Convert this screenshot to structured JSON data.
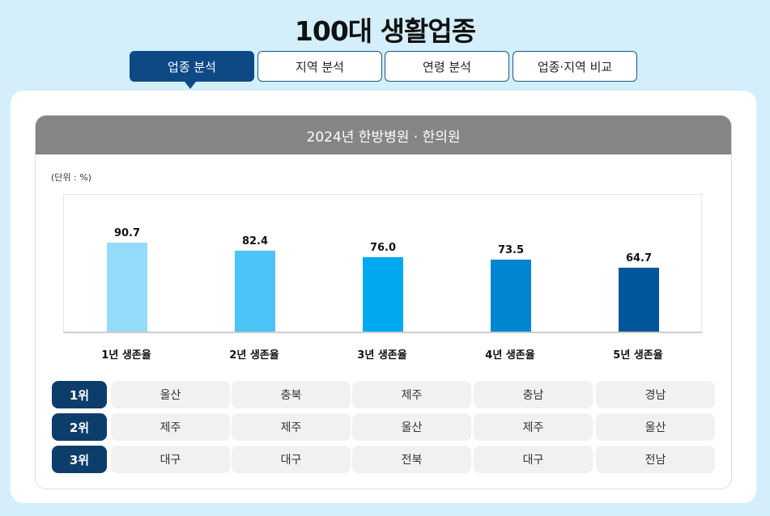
{
  "title": "100대 생활업종",
  "tabs": [
    {
      "label": "업종 분석",
      "active": true
    },
    {
      "label": "지역 분석"
    },
    {
      "label": "연령 분석"
    },
    {
      "label": "업종·지역 비교"
    }
  ],
  "card_title": "2024년 한방병원 · 한의원",
  "unit": "(단위 : %)",
  "chart_data": {
    "type": "bar",
    "categories": [
      "1년 생존율",
      "2년 생존율",
      "3년 생존율",
      "4년 생존율",
      "5년 생존율"
    ],
    "values": [
      90.7,
      82.4,
      76.0,
      73.5,
      64.7
    ],
    "value_labels": [
      "90.7",
      "82.4",
      "76.0",
      "73.5",
      "64.7"
    ],
    "colors": [
      "#93dbf9",
      "#4cc3f6",
      "#00a8f0",
      "#0085d1",
      "#00559b"
    ],
    "ylim": [
      0,
      140
    ],
    "grid": false
  },
  "rankings": [
    {
      "rank": "1위",
      "regions": [
        "울산",
        "충북",
        "제주",
        "충남",
        "경남"
      ]
    },
    {
      "rank": "2위",
      "regions": [
        "제주",
        "제주",
        "울산",
        "제주",
        "울산"
      ]
    },
    {
      "rank": "3위",
      "regions": [
        "대구",
        "대구",
        "전북",
        "대구",
        "전남"
      ]
    }
  ]
}
